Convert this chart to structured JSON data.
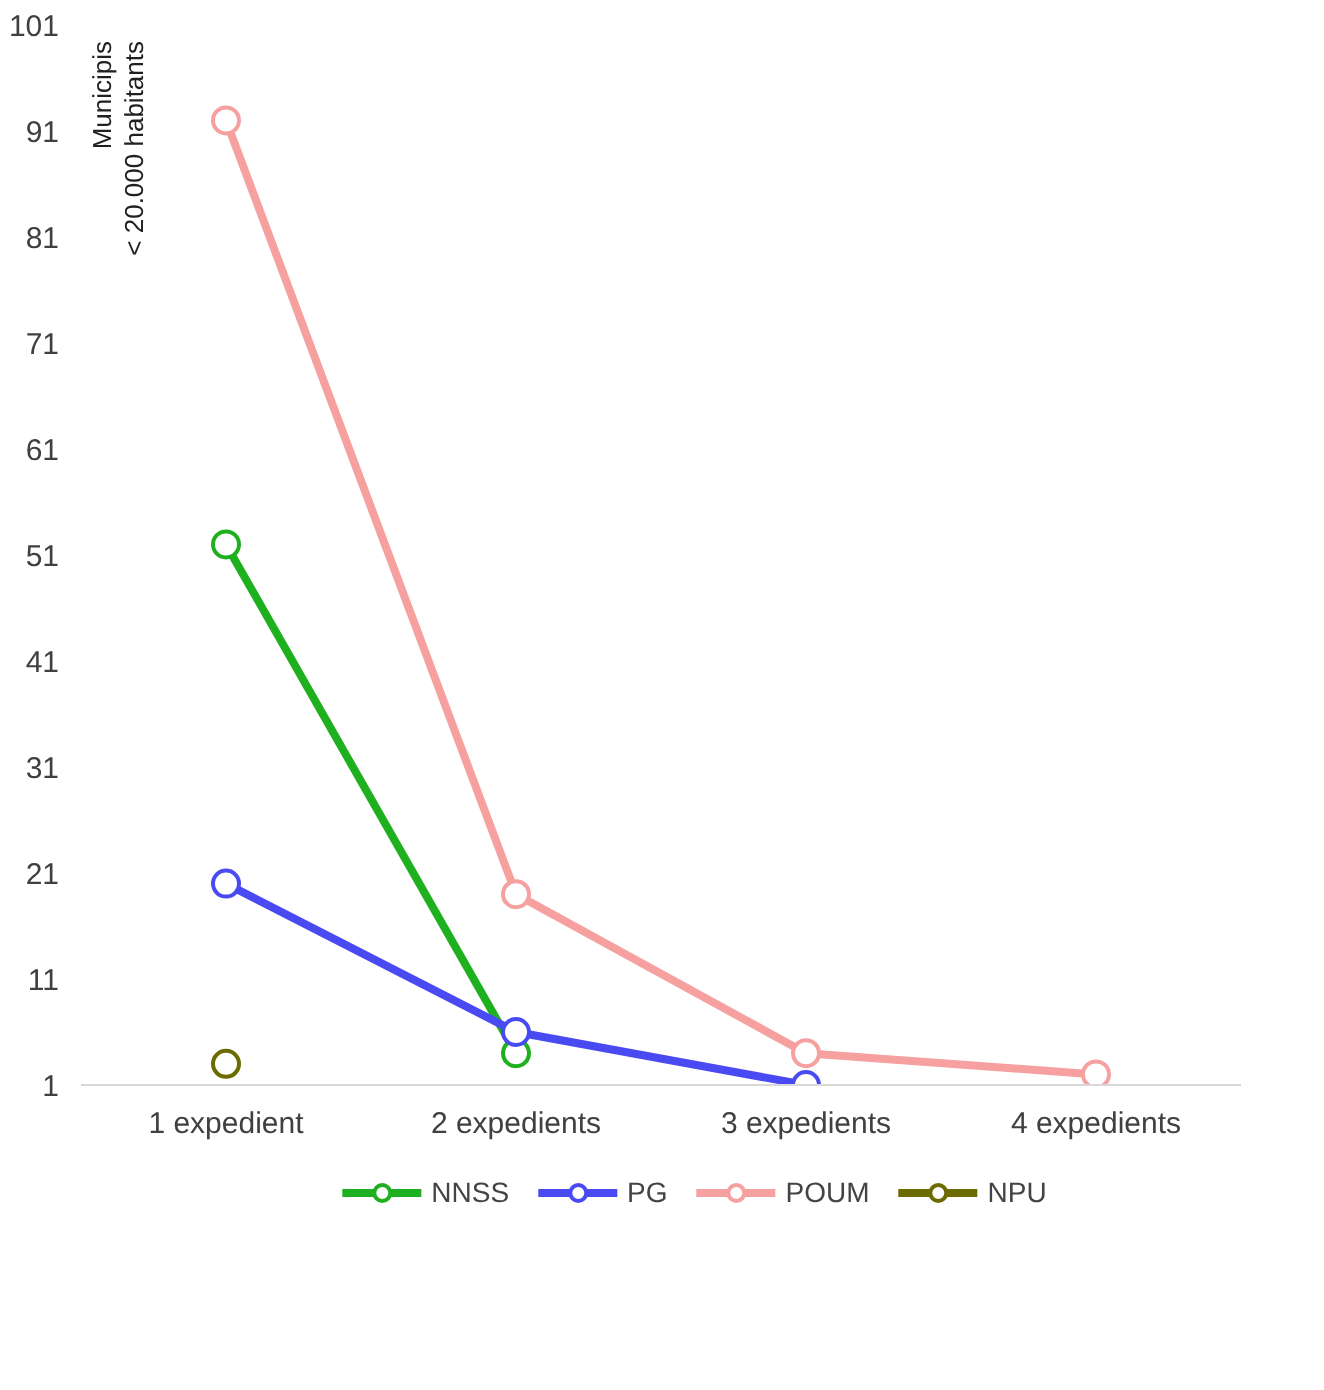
{
  "chart_data": {
    "type": "line",
    "ylabel": "Municipis\n< 20.000 habitants",
    "categories": [
      "1 expedient",
      "2 expedients",
      "3 expedients",
      "4 expedients"
    ],
    "series": [
      {
        "name": "NNSS",
        "color": "#1fb01f",
        "values": [
          52,
          4,
          null,
          null
        ]
      },
      {
        "name": "PG",
        "color": "#4a4af2",
        "values": [
          20,
          6,
          1,
          null
        ]
      },
      {
        "name": "POUM",
        "color": "#f6a0a0",
        "values": [
          92,
          19,
          4,
          2
        ]
      },
      {
        "name": "NPU",
        "color": "#6b6b00",
        "values": [
          3,
          null,
          null,
          null
        ]
      }
    ],
    "ylim": [
      1,
      101
    ],
    "yticks": [
      1,
      11,
      21,
      31,
      41,
      51,
      61,
      71,
      81,
      91,
      101
    ],
    "grid": false,
    "legend": "bottom",
    "marker": "circle",
    "line_style": "solid"
  }
}
